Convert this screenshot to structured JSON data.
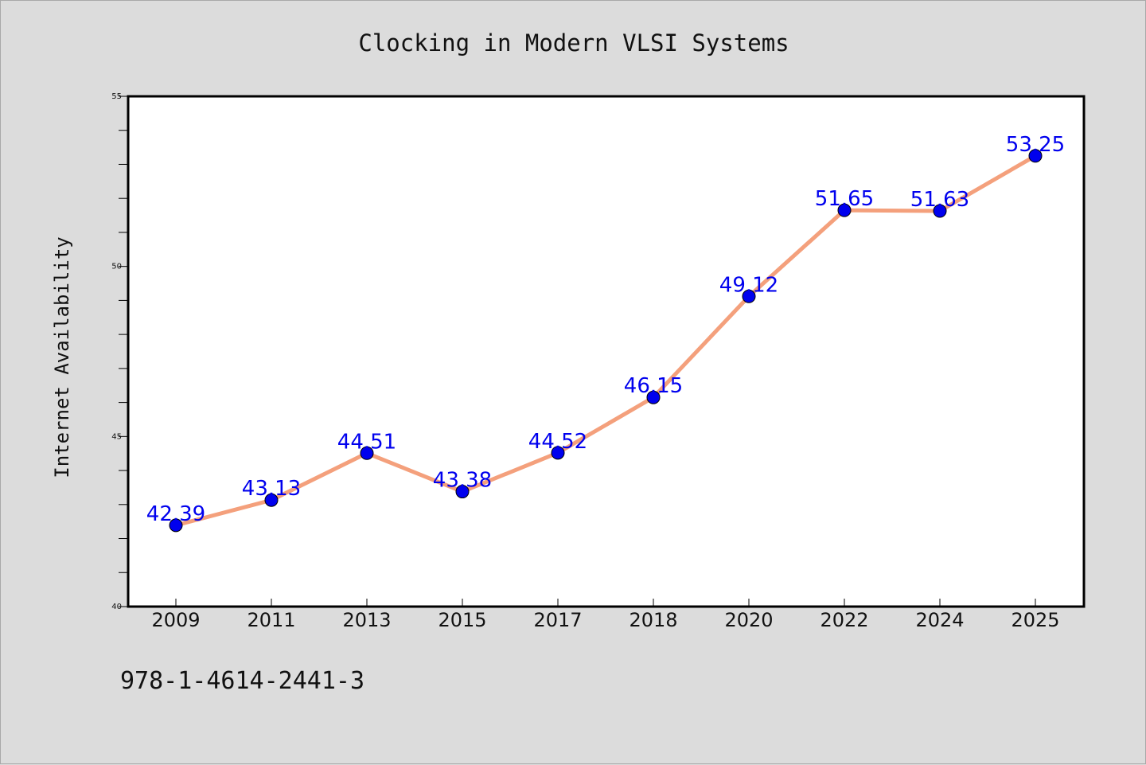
{
  "footer": {
    "isbn": "978-1-4614-2441-3"
  },
  "colors": {
    "background": "#dcdcdc",
    "plot_background": "#ffffff",
    "line": "#f4a07c",
    "marker": "#0000ee",
    "data_label": "#0000ee"
  },
  "chart_data": {
    "type": "line",
    "title": "Clocking in Modern VLSI Systems",
    "xlabel": "",
    "ylabel": "Internet Availability",
    "categories": [
      "2009",
      "2011",
      "2013",
      "2015",
      "2017",
      "2018",
      "2020",
      "2022",
      "2024",
      "2025"
    ],
    "series": [
      {
        "values": [
          42.39,
          43.13,
          44.51,
          43.38,
          44.52,
          46.15,
          49.12,
          51.65,
          51.63,
          53.25
        ],
        "labels": [
          "42.39",
          "43.13",
          "44.51",
          "43.38",
          "44.52",
          "46.15",
          "49.12",
          "51.65",
          "51.63",
          "53.25"
        ]
      }
    ],
    "ylim": [
      40,
      55
    ],
    "yticks_major": [
      "40",
      "45",
      "50",
      "55"
    ],
    "yticks_minor_step": 1,
    "grid": false,
    "legend": "none"
  }
}
